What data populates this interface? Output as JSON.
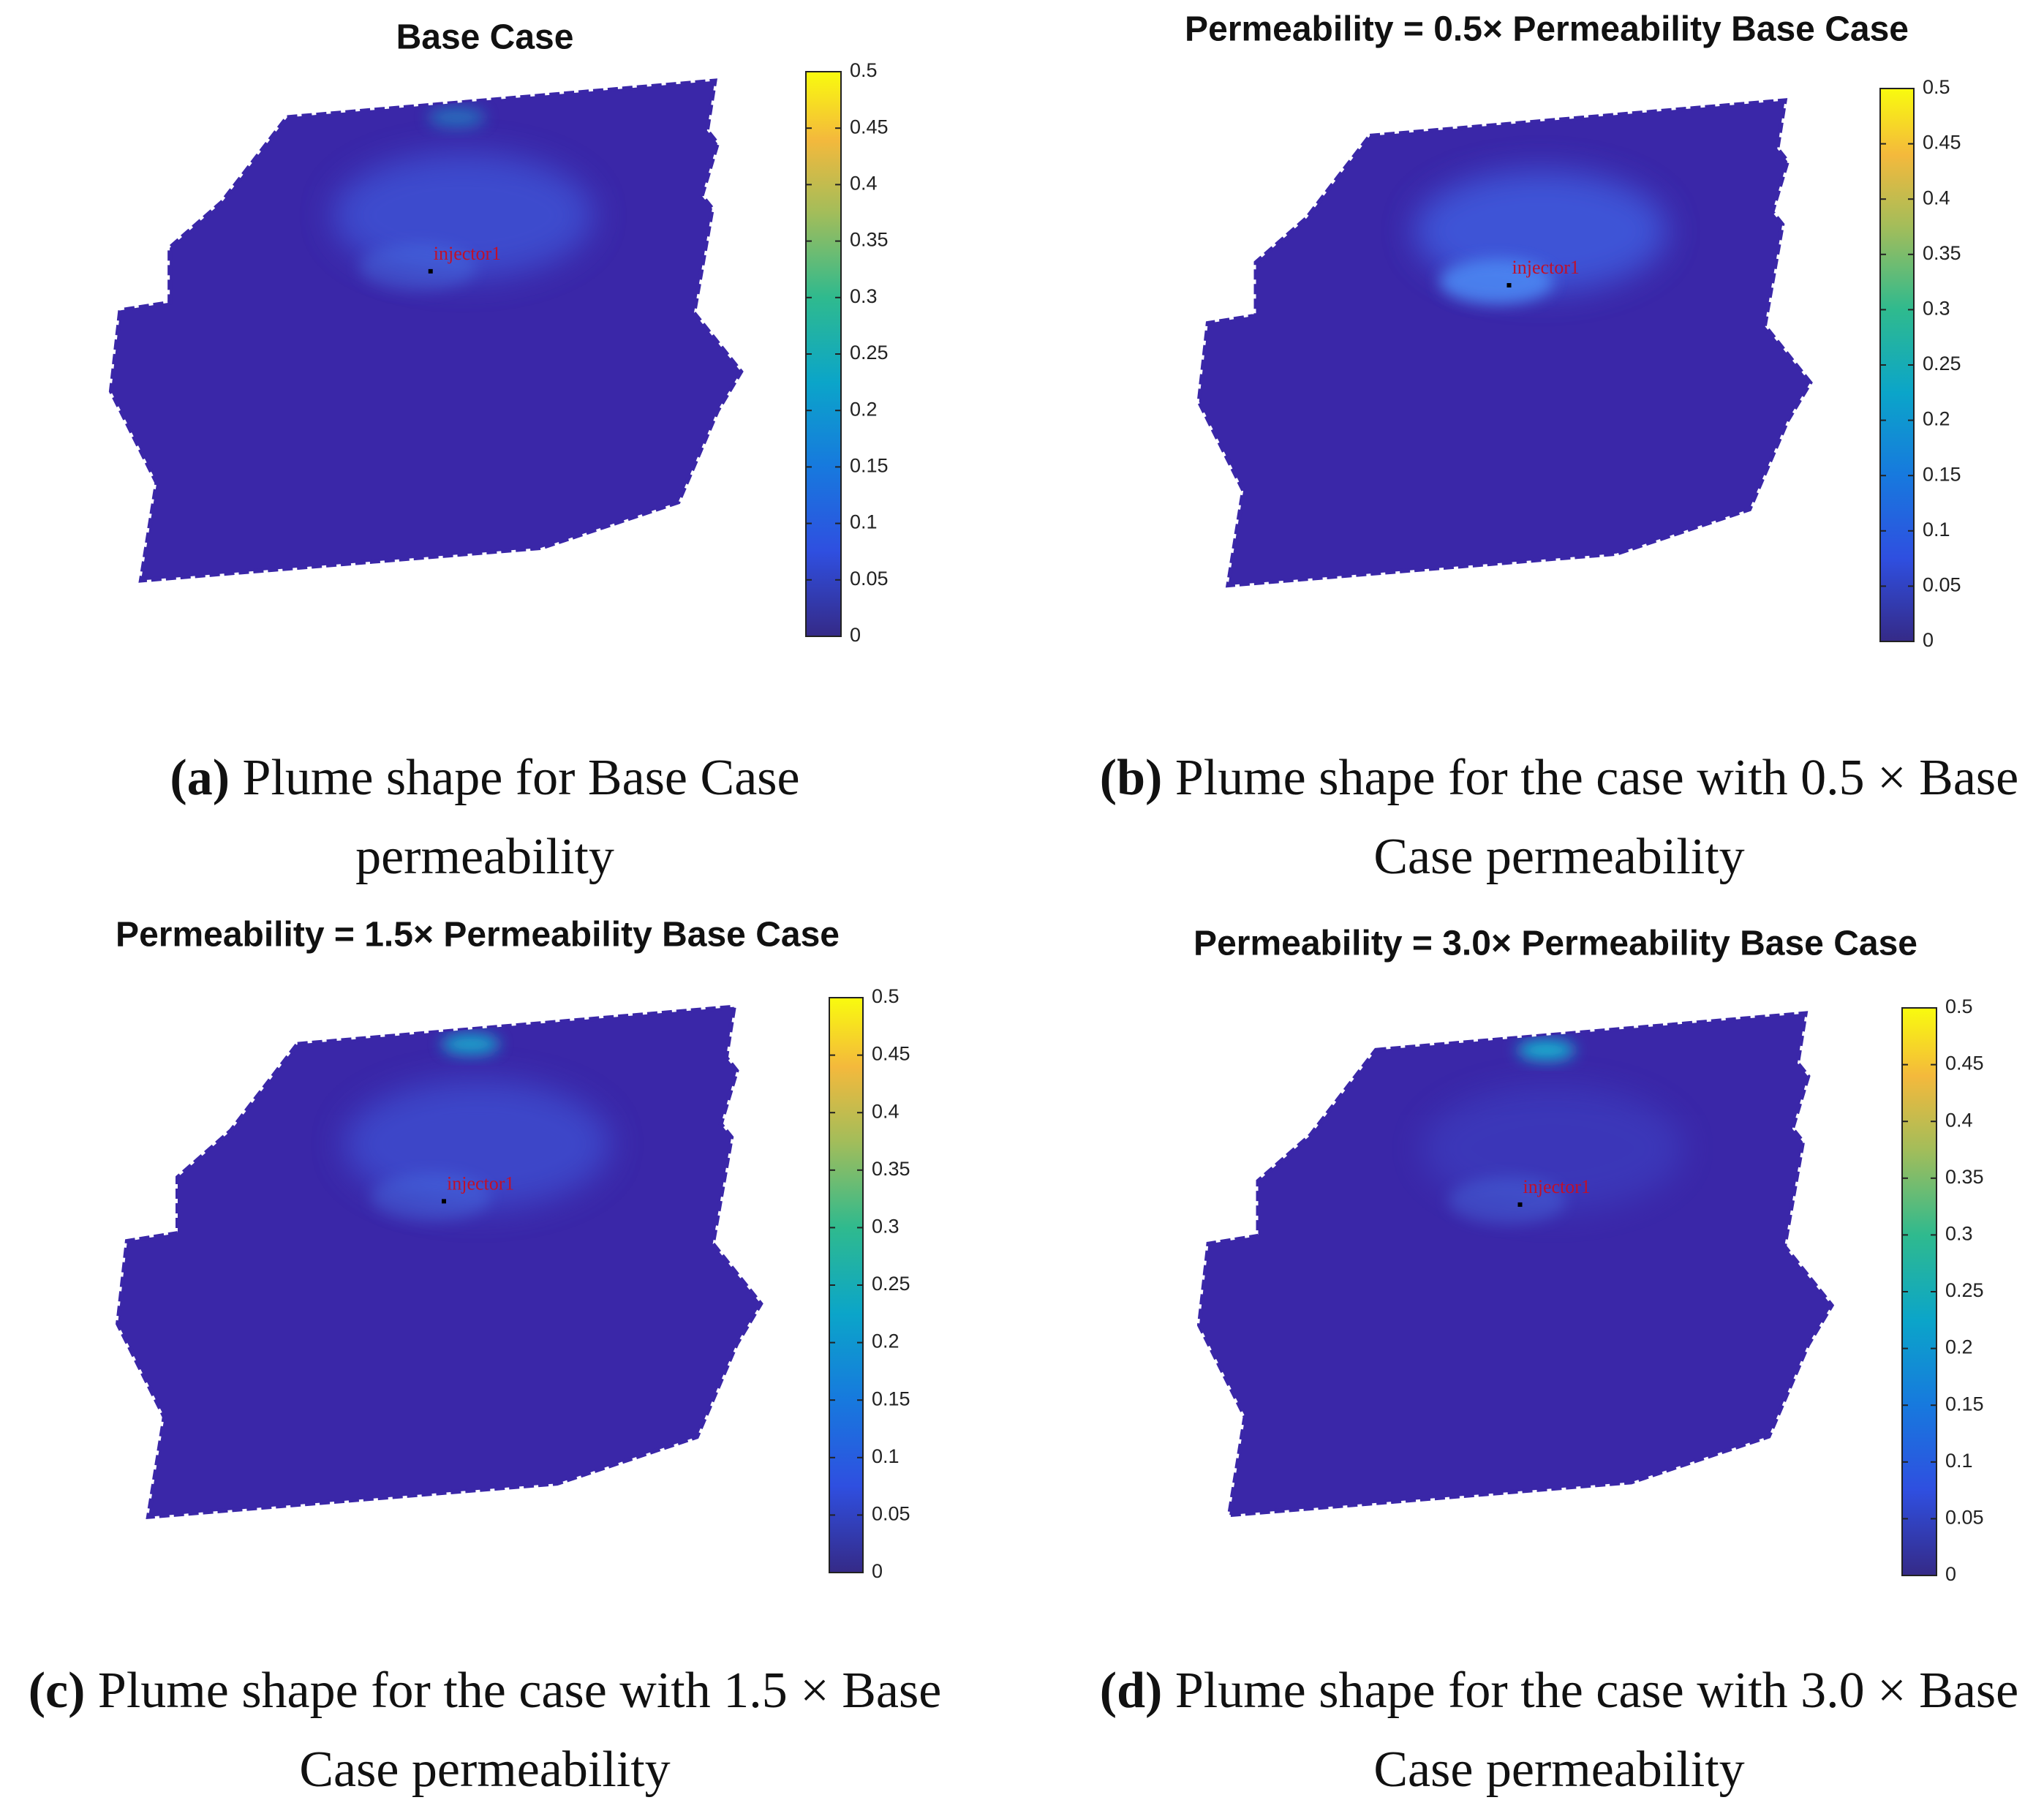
{
  "chart_data": [
    {
      "type": "heatmap",
      "title": "Base Case",
      "annotation": "injector1",
      "caption_label": "(a)",
      "caption": "Plume shape for Base Case permeability",
      "clim": [
        0,
        0.5
      ],
      "cticks": [
        0,
        0.05,
        0.1,
        0.15,
        0.2,
        0.25,
        0.3,
        0.35,
        0.4,
        0.45,
        0.5
      ]
    },
    {
      "type": "heatmap",
      "title": "Permeability = 0.5× Permeability Base Case",
      "annotation": "injector1",
      "caption_label": "(b)",
      "caption": "Plume shape for the case with 0.5 × Base Case permeability",
      "clim": [
        0,
        0.5
      ],
      "cticks": [
        0,
        0.05,
        0.1,
        0.15,
        0.2,
        0.25,
        0.3,
        0.35,
        0.4,
        0.45,
        0.5
      ]
    },
    {
      "type": "heatmap",
      "title": "Permeability = 1.5× Permeability Base Case",
      "annotation": "injector1",
      "caption_label": "(c)",
      "caption": "Plume shape for the case with 1.5 × Base Case permeability",
      "clim": [
        0,
        0.5
      ],
      "cticks": [
        0,
        0.05,
        0.1,
        0.15,
        0.2,
        0.25,
        0.3,
        0.35,
        0.4,
        0.45,
        0.5
      ]
    },
    {
      "type": "heatmap",
      "title": "Permeability = 3.0× Permeability Base Case",
      "annotation": "injector1",
      "caption_label": "(d)",
      "caption": "Plume shape for the case with 3.0 × Base Case permeability",
      "clim": [
        0,
        0.5
      ],
      "cticks": [
        0,
        0.05,
        0.1,
        0.15,
        0.2,
        0.25,
        0.3,
        0.35,
        0.4,
        0.45,
        0.5
      ]
    }
  ]
}
